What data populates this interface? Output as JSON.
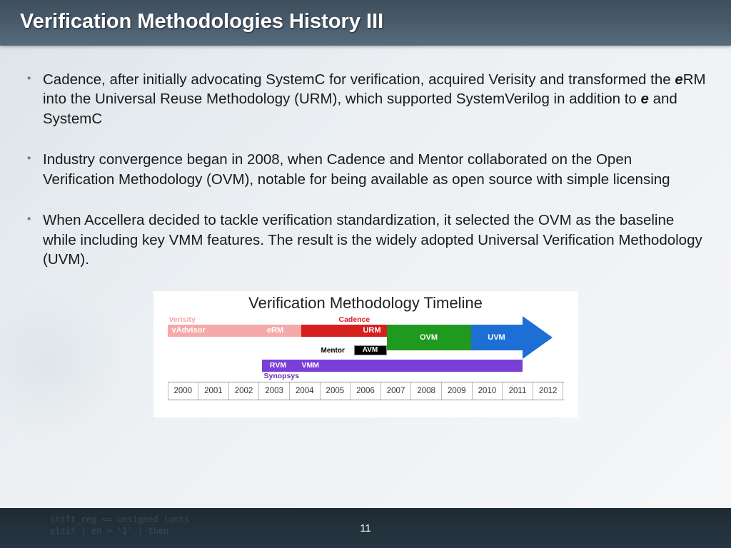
{
  "header": {
    "title": "Verification Methodologies History III"
  },
  "bullets": [
    {
      "pre": "Cadence, after initially advocating SystemC for verification, acquired Verisity and transformed the ",
      "e1": "e",
      "mid": "RM into the Universal Reuse Methodology (URM), which supported SystemVerilog in addition to ",
      "e2": "e",
      "post": " and SystemC"
    },
    {
      "text": "Industry convergence began in 2008, when Cadence and Mentor collaborated on the Open Verification Methodology (OVM), notable for being available as open source with simple licensing"
    },
    {
      "text": "When Accellera decided to tackle verification standardization, it selected the OVM as the baseline while including key VMM features. The result is the widely adopted Universal Verification Methodology (UVM)."
    }
  ],
  "timeline": {
    "title": "Verification Methodology Timeline",
    "vendors": {
      "verisity": "Verisity",
      "cadence": "Cadence",
      "mentor": "Mentor",
      "synopsys": "Synopsys"
    },
    "bars": {
      "vadvisor": "vAdvisor",
      "erm_prefix_e": "e",
      "erm_suffix": "RM",
      "urm": "URM",
      "ovm": "OVM",
      "uvm": "UVM",
      "avm": "AVM",
      "rvm": "RVM",
      "vmm": "VMM"
    },
    "colors": {
      "verisity_bar": "#f5a9a9",
      "verisity_label": "#f7a6a6",
      "cadence_bar": "#d61f1f",
      "cadence_label": "#d61f1f",
      "mentor_bar": "#000000",
      "ovm_bar": "#1f9a1f",
      "uvm_bar": "#1d6fd6",
      "synopsys_bar": "#7a3fd6",
      "synopsys_label": "#6a2fb5",
      "year_border": "#999999"
    },
    "years": [
      "2000",
      "2001",
      "2002",
      "2003",
      "2004",
      "2005",
      "2006",
      "2007",
      "2008",
      "2009",
      "2010",
      "2011",
      "2012"
    ]
  },
  "footer": {
    "page": "11"
  },
  "faint_code": {
    "l1": "shift_reg <= unsigned (unts",
    "l2": "elsif ( en = '1' ) then"
  }
}
